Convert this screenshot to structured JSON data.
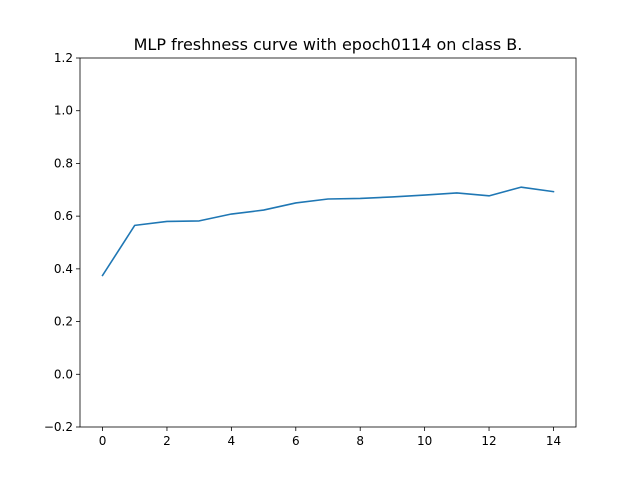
{
  "chart_data": {
    "type": "line",
    "title": "MLP freshness curve with epoch0114 on class B.",
    "xlabel": "",
    "ylabel": "",
    "xlim": [
      -0.7,
      14.7
    ],
    "ylim": [
      -0.2,
      1.2
    ],
    "xticks": [
      0,
      2,
      4,
      6,
      8,
      10,
      12,
      14
    ],
    "xtick_labels": [
      "0",
      "2",
      "4",
      "6",
      "8",
      "10",
      "12",
      "14"
    ],
    "yticks": [
      -0.2,
      0.0,
      0.2,
      0.4,
      0.6,
      0.8,
      1.0,
      1.2
    ],
    "ytick_labels": [
      "−0.2",
      "0.0",
      "0.2",
      "0.4",
      "0.6",
      "0.8",
      "1.0",
      "1.2"
    ],
    "grid": false,
    "series": [
      {
        "color": "#1f77b4",
        "x": [
          0,
          1,
          2,
          3,
          4,
          5,
          6,
          7,
          8,
          9,
          10,
          11,
          12,
          13,
          14
        ],
        "values": [
          0.375,
          0.565,
          0.58,
          0.582,
          0.608,
          0.623,
          0.65,
          0.665,
          0.667,
          0.673,
          0.68,
          0.688,
          0.677,
          0.71,
          0.693
        ]
      }
    ]
  }
}
